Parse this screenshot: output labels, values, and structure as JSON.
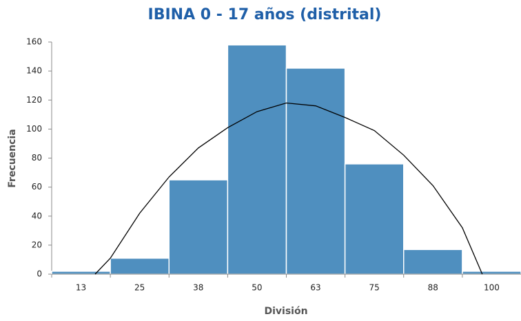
{
  "chart_data": {
    "type": "bar",
    "title": "IBINA 0 - 17 años (distrital)",
    "x_label": "División",
    "y_label": "Frecuencia",
    "categories": [
      "13",
      "25",
      "38",
      "50",
      "63",
      "75",
      "88",
      "100"
    ],
    "values": [
      2,
      11,
      65,
      158,
      142,
      76,
      17,
      2
    ],
    "color": "#4f8fbf",
    "curve": {
      "color": "#000000",
      "x": [
        0.74,
        1,
        1.5,
        2,
        2.5,
        3,
        3.5,
        4,
        4.5,
        5,
        5.5,
        6,
        6.5,
        7,
        7.34
      ],
      "values": [
        0,
        11,
        42,
        67,
        87,
        101,
        112,
        118,
        116,
        108,
        99,
        82,
        61,
        32,
        0
      ]
    },
    "ylim": [
      0,
      160
    ],
    "yticks": [
      0,
      20,
      40,
      60,
      80,
      100,
      120,
      140,
      160
    ],
    "grid": false
  }
}
